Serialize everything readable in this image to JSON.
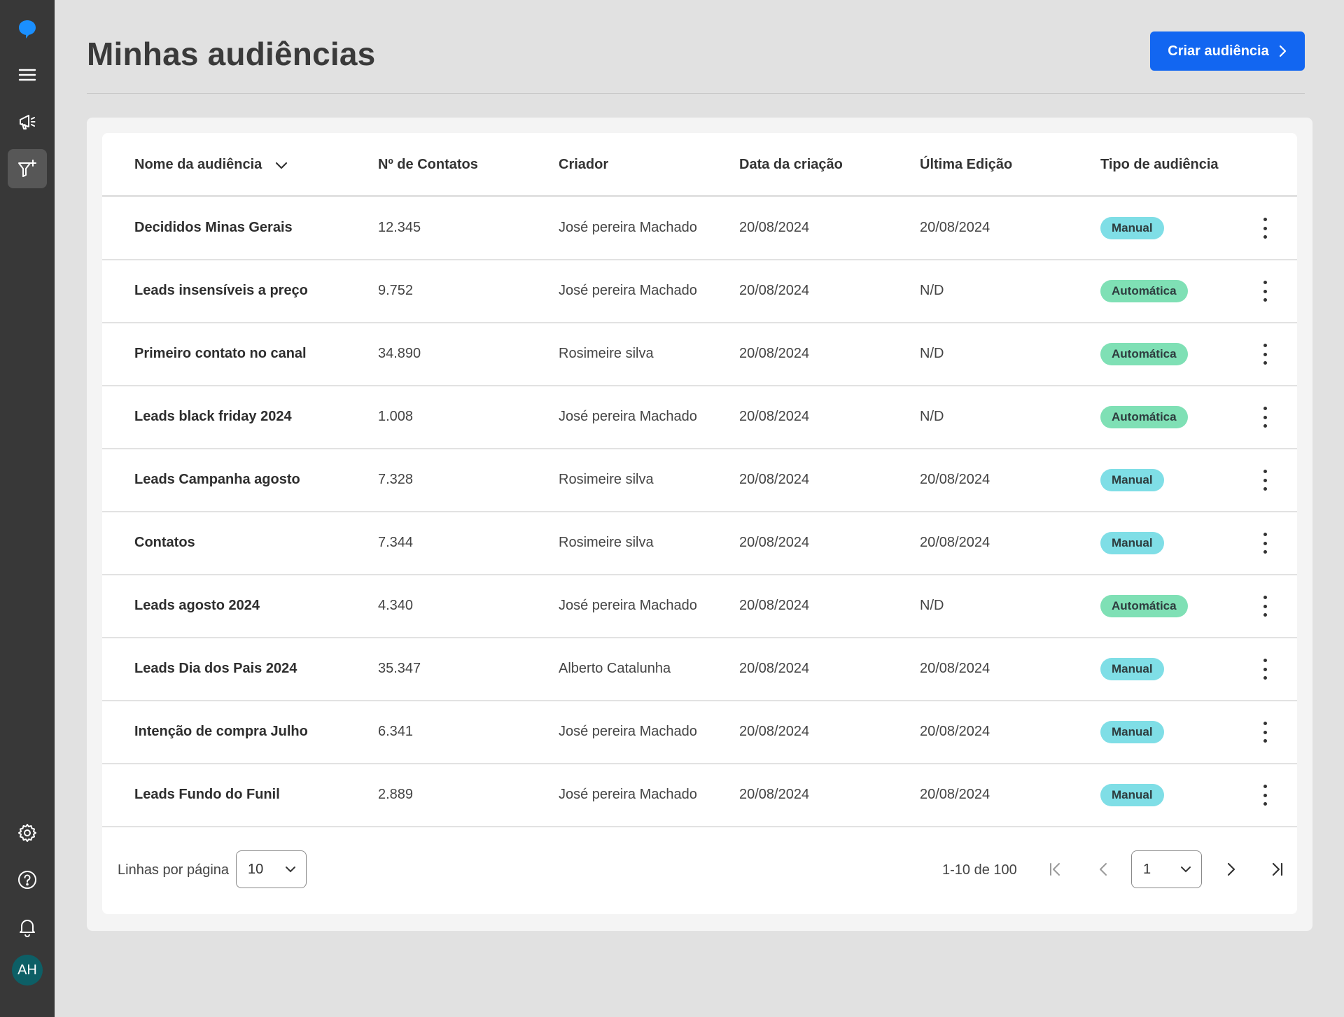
{
  "page": {
    "title": "Minhas audiências",
    "create_button": "Criar audiência"
  },
  "user": {
    "initials": "AH"
  },
  "sidebar": {
    "items": [
      {
        "icon": "chat-bubble-logo-icon"
      },
      {
        "icon": "menu-icon"
      },
      {
        "icon": "megaphone-icon"
      },
      {
        "icon": "filter-add-icon",
        "active": true
      },
      {
        "icon": "gear-icon"
      },
      {
        "icon": "help-icon"
      },
      {
        "icon": "bell-icon"
      }
    ]
  },
  "table": {
    "headers": {
      "name": "Nome da audiência",
      "contacts": "Nº de Contatos",
      "creator": "Criador",
      "created": "Data da criação",
      "edited": "Última Edição",
      "type": "Tipo de audiência"
    },
    "rows": [
      {
        "name": "Decididos Minas Gerais",
        "contacts": "12.345",
        "creator": "José pereira Machado",
        "created": "20/08/2024",
        "edited": "20/08/2024",
        "type": "Manual"
      },
      {
        "name": "Leads insensíveis a preço",
        "contacts": "9.752",
        "creator": "José pereira Machado",
        "created": "20/08/2024",
        "edited": "N/D",
        "type": "Automática"
      },
      {
        "name": "Primeiro contato no canal",
        "contacts": "34.890",
        "creator": "Rosimeire silva",
        "created": "20/08/2024",
        "edited": "N/D",
        "type": "Automática"
      },
      {
        "name": "Leads black friday 2024",
        "contacts": "1.008",
        "creator": "José pereira Machado",
        "created": "20/08/2024",
        "edited": "N/D",
        "type": "Automática"
      },
      {
        "name": "Leads Campanha agosto",
        "contacts": "7.328",
        "creator": "Rosimeire silva",
        "created": "20/08/2024",
        "edited": "20/08/2024",
        "type": "Manual"
      },
      {
        "name": "Contatos",
        "contacts": "7.344",
        "creator": "Rosimeire silva",
        "created": "20/08/2024",
        "edited": "20/08/2024",
        "type": "Manual"
      },
      {
        "name": "Leads agosto 2024",
        "contacts": "4.340",
        "creator": "José pereira Machado",
        "created": "20/08/2024",
        "edited": "N/D",
        "type": "Automática"
      },
      {
        "name": "Leads Dia dos Pais 2024",
        "contacts": "35.347",
        "creator": "Alberto Catalunha",
        "created": "20/08/2024",
        "edited": "20/08/2024",
        "type": "Manual"
      },
      {
        "name": "Intenção de compra Julho",
        "contacts": "6.341",
        "creator": "José pereira Machado",
        "created": "20/08/2024",
        "edited": "20/08/2024",
        "type": "Manual"
      },
      {
        "name": "Leads Fundo do Funil",
        "contacts": "2.889",
        "creator": "José pereira Machado",
        "created": "20/08/2024",
        "edited": "20/08/2024",
        "type": "Manual"
      }
    ]
  },
  "pagination": {
    "rows_per_page_label": "Linhas por página",
    "rows_per_page_value": "10",
    "range_text": "1-10 de 100",
    "current_page": "1"
  },
  "colors": {
    "primary": "#1266f1",
    "sidebar": "#383838",
    "badge_manual": "#7fdee6",
    "badge_auto": "#7fe0b5",
    "logo": "#1a8fff"
  }
}
